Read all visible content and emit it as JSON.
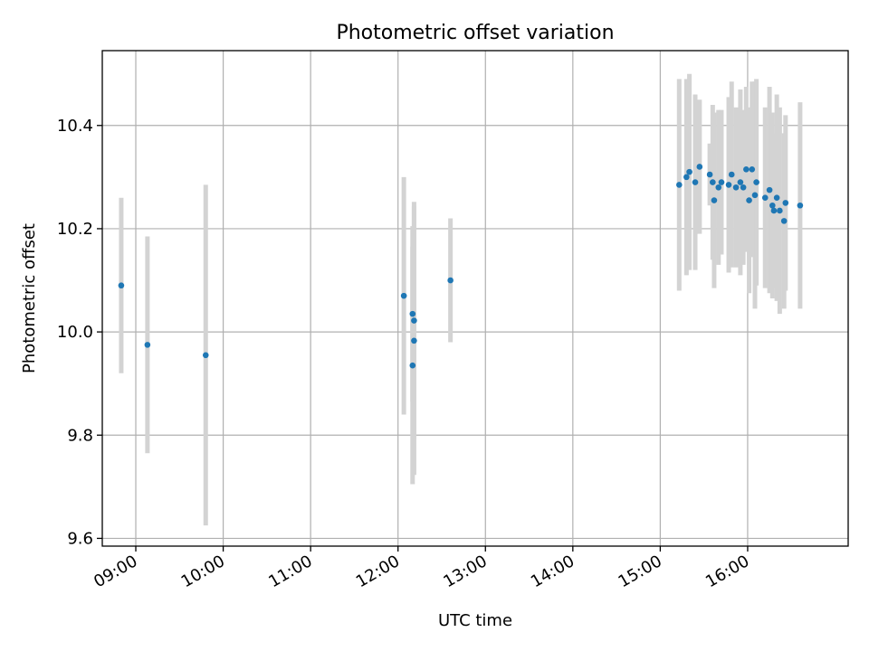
{
  "chart_data": {
    "type": "scatter",
    "title": "Photometric offset variation",
    "xlabel": "UTC time",
    "ylabel": "Photometric offset",
    "x_tick_labels": [
      "09:00",
      "10:00",
      "11:00",
      "12:00",
      "13:00",
      "14:00",
      "15:00",
      "16:00"
    ],
    "y_tick_labels": [
      "9.6",
      "9.8",
      "10.0",
      "10.2",
      "10.4"
    ],
    "y_ticks": [
      9.6,
      9.8,
      10.0,
      10.2,
      10.4
    ],
    "xlim": [
      "08:37",
      "17:09"
    ],
    "ylim": [
      9.585,
      10.545
    ],
    "grid": true,
    "point_color": "#1f77b4",
    "errorbar_color": "#d3d3d3",
    "series": [
      {
        "points": [
          {
            "x": "08:50",
            "y": 10.09,
            "err": 0.17
          },
          {
            "x": "09:08",
            "y": 9.975,
            "err": 0.21
          },
          {
            "x": "09:48",
            "y": 9.955,
            "err": 0.33
          },
          {
            "x": "12:04",
            "y": 10.07,
            "err": 0.23
          },
          {
            "x": "12:10",
            "y": 10.035,
            "err": 0.17
          },
          {
            "x": "12:11",
            "y": 10.022,
            "err": 0.23
          },
          {
            "x": "12:11",
            "y": 9.983,
            "err": 0.26
          },
          {
            "x": "12:10",
            "y": 9.935,
            "err": 0.23
          },
          {
            "x": "12:36",
            "y": 10.1,
            "err": 0.12
          },
          {
            "x": "15:13",
            "y": 10.285,
            "err": 0.205
          },
          {
            "x": "15:18",
            "y": 10.3,
            "err": 0.19
          },
          {
            "x": "15:20",
            "y": 10.31,
            "err": 0.19
          },
          {
            "x": "15:24",
            "y": 10.29,
            "err": 0.17
          },
          {
            "x": "15:27",
            "y": 10.32,
            "err": 0.13
          },
          {
            "x": "15:34",
            "y": 10.305,
            "err": 0.06
          },
          {
            "x": "15:36",
            "y": 10.29,
            "err": 0.15
          },
          {
            "x": "15:37",
            "y": 10.255,
            "err": 0.17
          },
          {
            "x": "15:40",
            "y": 10.28,
            "err": 0.15
          },
          {
            "x": "15:42",
            "y": 10.29,
            "err": 0.14
          },
          {
            "x": "15:47",
            "y": 10.285,
            "err": 0.17
          },
          {
            "x": "15:49",
            "y": 10.305,
            "err": 0.18
          },
          {
            "x": "15:52",
            "y": 10.28,
            "err": 0.155
          },
          {
            "x": "15:55",
            "y": 10.29,
            "err": 0.18
          },
          {
            "x": "15:57",
            "y": 10.28,
            "err": 0.15
          },
          {
            "x": "15:59",
            "y": 10.315,
            "err": 0.16
          },
          {
            "x": "16:01",
            "y": 10.255,
            "err": 0.18
          },
          {
            "x": "16:03",
            "y": 10.315,
            "err": 0.17
          },
          {
            "x": "16:05",
            "y": 10.265,
            "err": 0.22
          },
          {
            "x": "16:06",
            "y": 10.29,
            "err": 0.2
          },
          {
            "x": "16:12",
            "y": 10.26,
            "err": 0.175
          },
          {
            "x": "16:15",
            "y": 10.275,
            "err": 0.2
          },
          {
            "x": "16:17",
            "y": 10.245,
            "err": 0.18
          },
          {
            "x": "16:18",
            "y": 10.235,
            "err": 0.15
          },
          {
            "x": "16:20",
            "y": 10.26,
            "err": 0.2
          },
          {
            "x": "16:22",
            "y": 10.235,
            "err": 0.2
          },
          {
            "x": "16:25",
            "y": 10.215,
            "err": 0.17
          },
          {
            "x": "16:26",
            "y": 10.25,
            "err": 0.17
          },
          {
            "x": "16:36",
            "y": 10.245,
            "err": 0.2
          }
        ]
      }
    ]
  }
}
